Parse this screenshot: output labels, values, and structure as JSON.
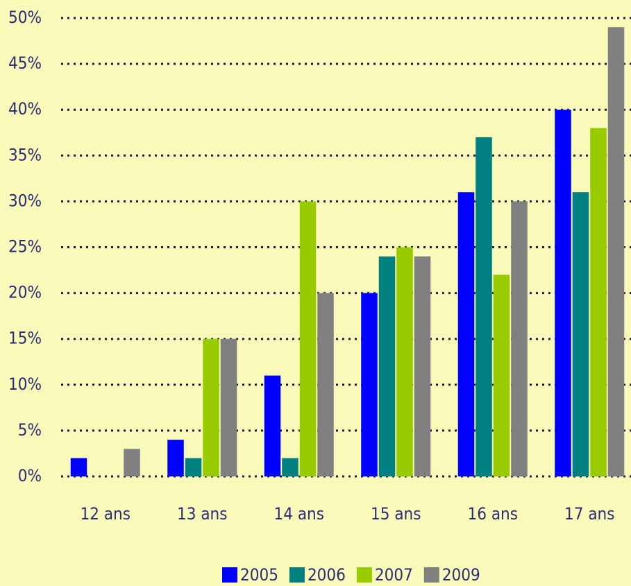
{
  "chart_data": {
    "type": "bar",
    "categories": [
      "12 ans",
      "13 ans",
      "14 ans",
      "15 ans",
      "16 ans",
      "17 ans"
    ],
    "series": [
      {
        "name": "2005",
        "color": "#0000ff",
        "values": [
          2,
          4,
          11,
          20,
          31,
          40
        ]
      },
      {
        "name": "2006",
        "color": "#008080",
        "values": [
          0,
          2,
          2,
          24,
          37,
          31
        ]
      },
      {
        "name": "2007",
        "color": "#99cc00",
        "values": [
          0,
          15,
          30,
          25,
          22,
          38
        ]
      },
      {
        "name": "2009",
        "color": "#808080",
        "values": [
          3,
          15,
          20,
          24,
          30,
          49
        ]
      }
    ],
    "ylim": [
      0,
      50
    ],
    "yticks": [
      {
        "value": 0,
        "label": "0%"
      },
      {
        "value": 5,
        "label": "5%"
      },
      {
        "value": 10,
        "label": "10%"
      },
      {
        "value": 15,
        "label": "15%"
      },
      {
        "value": 20,
        "label": "20%"
      },
      {
        "value": 25,
        "label": "25%"
      },
      {
        "value": 30,
        "label": "30%"
      },
      {
        "value": 35,
        "label": "35%"
      },
      {
        "value": 40,
        "label": "40%"
      },
      {
        "value": 45,
        "label": "45%"
      },
      {
        "value": 50,
        "label": "50%"
      }
    ],
    "grid": true,
    "legend": "bottom"
  }
}
